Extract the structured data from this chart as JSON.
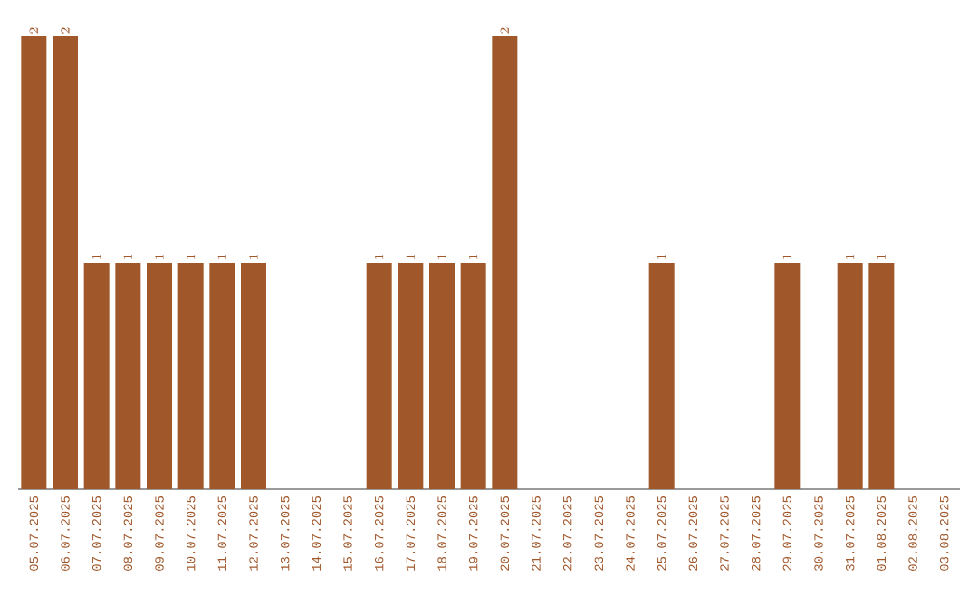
{
  "chart_data": {
    "type": "bar",
    "categories": [
      "05.07.2025",
      "06.07.2025",
      "07.07.2025",
      "08.07.2025",
      "09.07.2025",
      "10.07.2025",
      "11.07.2025",
      "12.07.2025",
      "13.07.2025",
      "14.07.2025",
      "15.07.2025",
      "16.07.2025",
      "17.07.2025",
      "18.07.2025",
      "19.07.2025",
      "20.07.2025",
      "21.07.2025",
      "22.07.2025",
      "23.07.2025",
      "24.07.2025",
      "25.07.2025",
      "26.07.2025",
      "27.07.2025",
      "28.07.2025",
      "29.07.2025",
      "30.07.2025",
      "31.07.2025",
      "01.08.2025",
      "02.08.2025",
      "03.08.2025"
    ],
    "values": [
      2,
      2,
      1,
      1,
      1,
      1,
      1,
      1,
      null,
      null,
      null,
      1,
      1,
      1,
      1,
      2,
      null,
      null,
      null,
      null,
      1,
      null,
      null,
      null,
      1,
      null,
      1,
      1,
      null,
      null
    ],
    "color": "#a0572a",
    "data_labels": true,
    "tick_labels": "x"
  }
}
